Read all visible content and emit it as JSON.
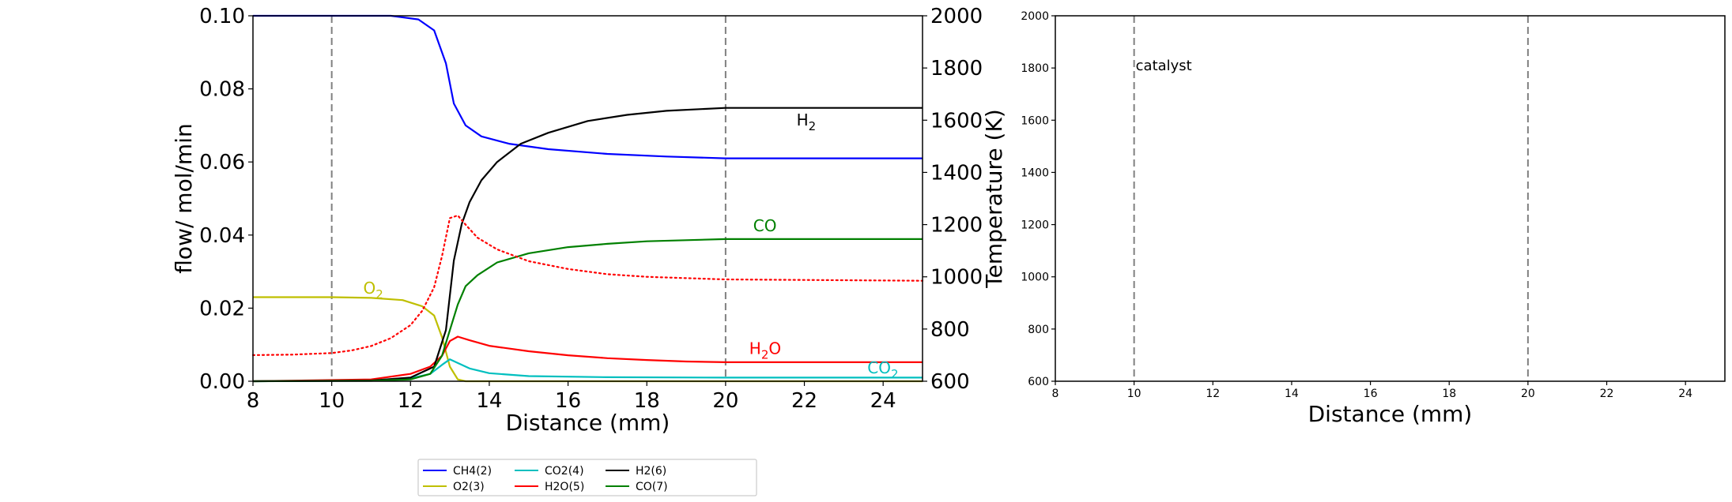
{
  "chart_data": [
    {
      "type": "line",
      "xlabel": "Distance (mm)",
      "ylabel": "flow/ mol/min",
      "ylabel_right": "Temperature (K)",
      "xlim": [
        8,
        25
      ],
      "ylim": [
        0,
        0.1
      ],
      "ylim_right": [
        600,
        2000
      ],
      "x_ticks": [
        "8",
        "10",
        "12",
        "14",
        "16",
        "18",
        "20",
        "22",
        "24"
      ],
      "y_ticks": [
        "0.00",
        "0.02",
        "0.04",
        "0.06",
        "0.08",
        "0.10"
      ],
      "y_ticks_right": [
        "600",
        "800",
        "1000",
        "1200",
        "1400",
        "1600",
        "1800",
        "2000"
      ],
      "vlines": [
        10,
        20
      ],
      "series": [
        {
          "name": "CH4(2)",
          "color": "#0000ff",
          "x": [
            8,
            11.5,
            12.2,
            12.6,
            12.9,
            13.1,
            13.4,
            13.8,
            14.5,
            15.5,
            17,
            18.5,
            20,
            25
          ],
          "y": [
            0.1,
            0.1,
            0.099,
            0.096,
            0.087,
            0.076,
            0.07,
            0.067,
            0.065,
            0.0635,
            0.0622,
            0.0615,
            0.061,
            0.061
          ]
        },
        {
          "name": "O2(3)",
          "color": "#bfbf00",
          "x": [
            8,
            10,
            11,
            11.8,
            12.3,
            12.6,
            12.8,
            13.0,
            13.2,
            13.4,
            25
          ],
          "y": [
            0.023,
            0.023,
            0.0228,
            0.0222,
            0.0205,
            0.018,
            0.012,
            0.004,
            0.0005,
            0,
            0
          ]
        },
        {
          "name": "CO2(4)",
          "color": "#00bfbf",
          "x": [
            8,
            11,
            12,
            12.5,
            12.8,
            13.0,
            13.2,
            13.5,
            14,
            15,
            17,
            20,
            25
          ],
          "y": [
            0,
            0.0002,
            0.0008,
            0.002,
            0.0045,
            0.006,
            0.005,
            0.0035,
            0.0022,
            0.0014,
            0.0011,
            0.001,
            0.001
          ]
        },
        {
          "name": "H2O(5)",
          "color": "#ff0000",
          "x": [
            8,
            11,
            12,
            12.5,
            12.8,
            13.0,
            13.2,
            13.5,
            14,
            15,
            16,
            17,
            18,
            19,
            20,
            25
          ],
          "y": [
            0,
            0.0005,
            0.002,
            0.004,
            0.007,
            0.011,
            0.0122,
            0.0112,
            0.0097,
            0.0082,
            0.0071,
            0.0063,
            0.0058,
            0.0054,
            0.0052,
            0.0052
          ]
        },
        {
          "name": "H2(6)",
          "color": "#000000",
          "x": [
            8,
            11,
            12,
            12.6,
            12.9,
            13.1,
            13.3,
            13.5,
            13.8,
            14.2,
            14.8,
            15.5,
            16.5,
            17.5,
            18.5,
            20,
            25
          ],
          "y": [
            0,
            0.0002,
            0.001,
            0.004,
            0.014,
            0.033,
            0.043,
            0.049,
            0.055,
            0.06,
            0.065,
            0.068,
            0.0712,
            0.0729,
            0.074,
            0.0748,
            0.0748
          ]
        },
        {
          "name": "CO(7)",
          "color": "#008000",
          "x": [
            8,
            11,
            12,
            12.5,
            12.8,
            13.0,
            13.2,
            13.4,
            13.7,
            14.2,
            15,
            16,
            17,
            18,
            20,
            25
          ],
          "y": [
            0,
            0.0001,
            0.0005,
            0.002,
            0.007,
            0.014,
            0.021,
            0.026,
            0.029,
            0.0325,
            0.035,
            0.0367,
            0.0376,
            0.0383,
            0.0389,
            0.0389
          ]
        }
      ],
      "temperature_series": {
        "color": "#ff0000",
        "style": "dotted",
        "x": [
          8,
          9,
          10,
          10.5,
          11,
          11.5,
          12,
          12.3,
          12.6,
          12.8,
          13.0,
          13.2,
          13.4,
          13.7,
          14.2,
          15,
          16,
          17,
          18,
          19,
          20,
          25
        ],
        "y": [
          700,
          702,
          708,
          718,
          735,
          765,
          815,
          870,
          960,
          1080,
          1225,
          1235,
          1200,
          1150,
          1105,
          1060,
          1030,
          1010,
          1000,
          995,
          990,
          985
        ]
      },
      "annotations": [
        {
          "text": "O2",
          "base": "O",
          "sub": "2",
          "x": 10.8,
          "y": 0.024,
          "color": "#bfbf00"
        },
        {
          "text": "H2",
          "base": "H",
          "sub": "2",
          "x": 21.8,
          "y": 0.07,
          "color": "#000000"
        },
        {
          "text": "CO",
          "base": "CO",
          "sub": "",
          "x": 20.7,
          "y": 0.041,
          "color": "#008000"
        },
        {
          "text": "H2O",
          "base": "H",
          "sub": "2",
          "post": "O",
          "x": 20.6,
          "y": 0.0075,
          "color": "#ff0000"
        },
        {
          "text": "CO2",
          "base": "CO",
          "sub": "2",
          "x": 23.6,
          "y": 0.0022,
          "color": "#00bfbf"
        }
      ],
      "legend": {
        "placement": "bottom-center",
        "entries": [
          {
            "label": "CH4(2)",
            "color": "#0000ff"
          },
          {
            "label": "O2(3)",
            "color": "#bfbf00"
          },
          {
            "label": "CO2(4)",
            "color": "#00bfbf"
          },
          {
            "label": "H2O(5)",
            "color": "#ff0000"
          },
          {
            "label": "H2(6)",
            "color": "#000000"
          },
          {
            "label": "CO(7)",
            "color": "#008000"
          }
        ]
      }
    },
    {
      "type": "line",
      "xlabel": "Distance (mm)",
      "xlim": [
        8,
        25
      ],
      "ylim": [
        600,
        2000
      ],
      "x_ticks": [
        "8",
        "10",
        "12",
        "14",
        "16",
        "18",
        "20",
        "22",
        "24"
      ],
      "y_ticks": [
        "600",
        "800",
        "1000",
        "1200",
        "1400",
        "1600",
        "1800",
        "2000"
      ],
      "vlines": [
        10,
        20
      ],
      "annotations": [
        {
          "text": "catalyst",
          "x": 10.0,
          "y": 1810,
          "color": "#000000"
        }
      ]
    }
  ]
}
